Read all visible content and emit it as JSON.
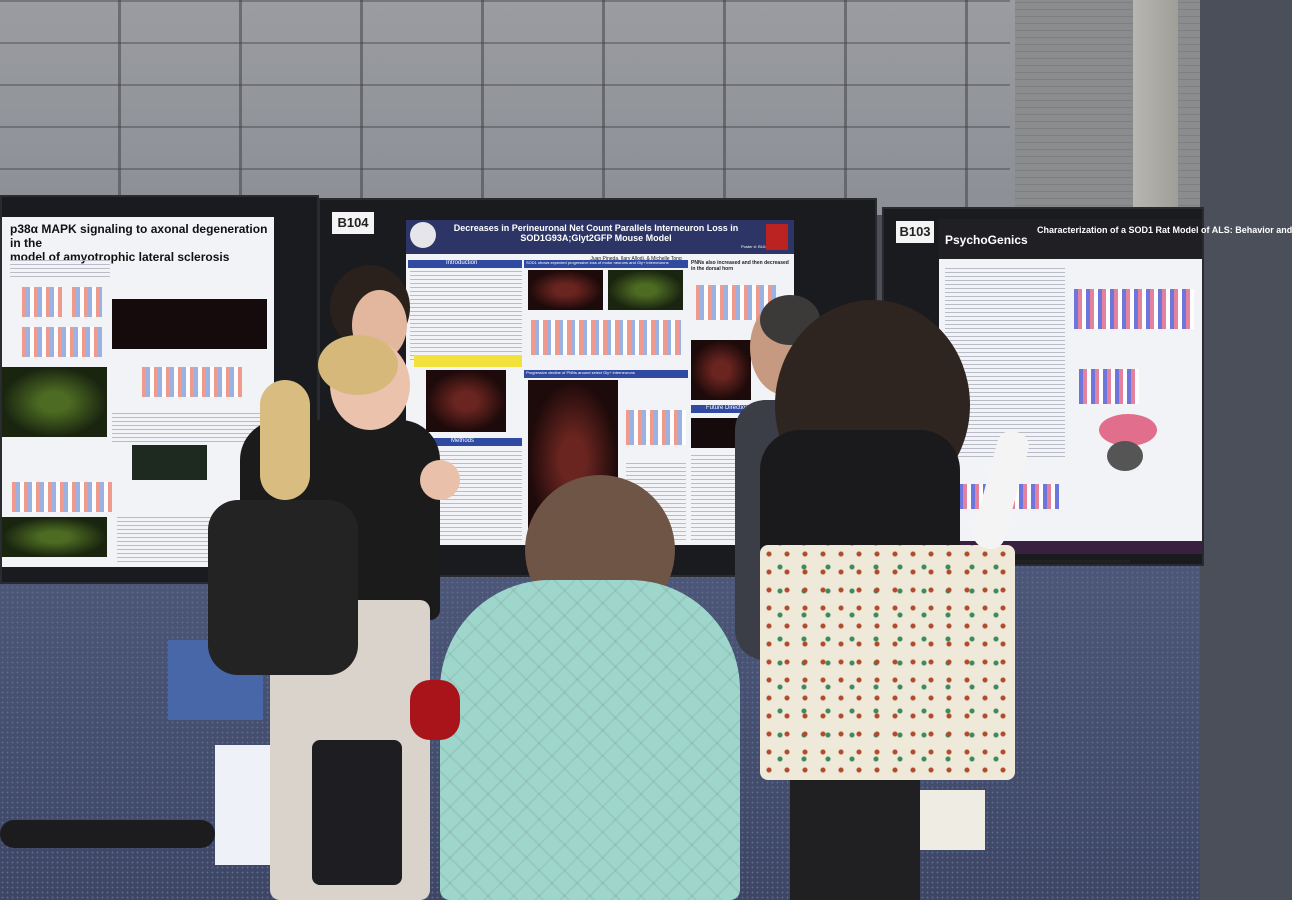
{
  "booth_tags": {
    "left": "B104",
    "right": "B103"
  },
  "poster_left": {
    "title_line1": "p38α MAPK signaling to axonal degeneration in the",
    "title_line2": "model of amyotrophic lateral sclerosis"
  },
  "poster_center": {
    "title_line1": "Decreases in Perineuronal Net Count Parallels Interneuron Loss in",
    "title_line2": "SOD1G93A;Glyt2GFP Mouse Model",
    "authors": "Juan Pineda, Ilary Allodi, & Michelle Tong",
    "poster_id": "Poster #: B104",
    "section_intro": "Introduction",
    "section_methods": "Methods",
    "section_future": "Future Directions",
    "heading_1": "SOD1 shows expected progressive loss of motor neurons and Gly+ interneurons",
    "heading_2": "PNNs also increased and then decreased in the dorsal horn",
    "heading_3": "Progressive decline of PNNs around select Gly+ interneurons"
  },
  "poster_right": {
    "brand": "PsychoGenics",
    "title": "Characterization of a SOD1 Rat Model of ALS: Behavior and"
  },
  "colors": {
    "board": "#1a1b1e",
    "poster_bg": "#f2f3f6",
    "header_blue": "#2c3566",
    "carpet": "#4d5778",
    "jacket_mint": "#9fd6cc"
  }
}
